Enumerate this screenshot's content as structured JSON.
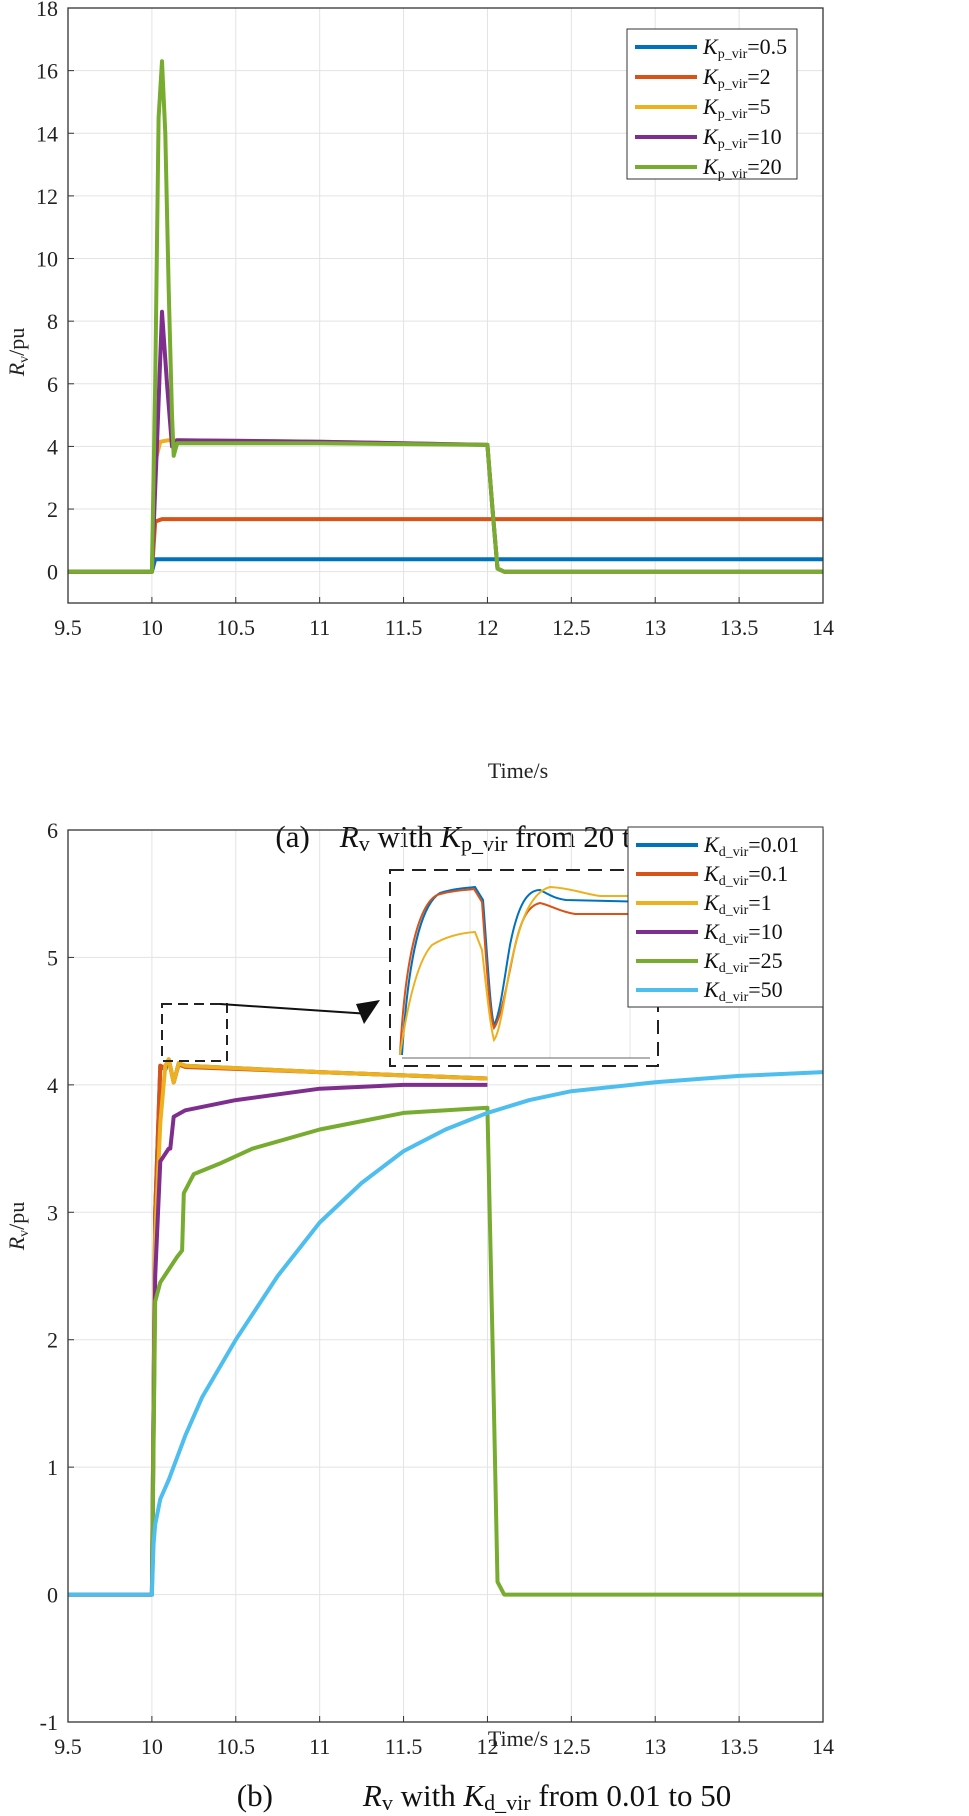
{
  "chart_data": [
    {
      "panel": "a",
      "type": "line",
      "caption": {
        "label": "(a)",
        "pre": "R",
        "pre_sub": "v",
        "mid": " with ",
        "k": "K",
        "k_sub": "p_vir",
        "post": " from 20 to 0.5"
      },
      "xlabel": "Time/s",
      "ylabel": {
        "main": "R",
        "sub": "v",
        "rest": "/pu"
      },
      "xlim": [
        9.5,
        14
      ],
      "ylim": [
        -1,
        18
      ],
      "xticks": [
        "9.5",
        "10",
        "10.5",
        "11",
        "11.5",
        "12",
        "12.5",
        "13",
        "13.5",
        "14"
      ],
      "yticks": [
        "0",
        "2",
        "4",
        "6",
        "8",
        "10",
        "12",
        "14",
        "16",
        "18"
      ],
      "grid": true,
      "legend_position": "top-right",
      "series": [
        {
          "legend": {
            "k": "K",
            "sub": "p_vir",
            "val": "=0.5"
          },
          "color": "#0072BD",
          "points": [
            [
              9.5,
              0
            ],
            [
              10.0,
              0
            ],
            [
              10.02,
              0.4
            ],
            [
              10.05,
              0.4
            ],
            [
              14,
              0.4
            ]
          ]
        },
        {
          "legend": {
            "k": "K",
            "sub": "p_vir",
            "val": "=2"
          },
          "color": "#D95319",
          "points": [
            [
              9.5,
              0
            ],
            [
              10.0,
              0
            ],
            [
              10.02,
              1.6
            ],
            [
              10.06,
              1.68
            ],
            [
              14,
              1.68
            ]
          ]
        },
        {
          "legend": {
            "k": "K",
            "sub": "p_vir",
            "val": "=5"
          },
          "color": "#EDB120",
          "points": [
            [
              9.5,
              0
            ],
            [
              10.0,
              0
            ],
            [
              10.02,
              3.5
            ],
            [
              10.05,
              4.15
            ],
            [
              10.1,
              4.2
            ],
            [
              11,
              4.15
            ],
            [
              12.0,
              4.05
            ],
            [
              12.03,
              2.0
            ],
            [
              12.06,
              0.1
            ],
            [
              12.1,
              0
            ],
            [
              14,
              0
            ]
          ]
        },
        {
          "legend": {
            "k": "K",
            "sub": "p_vir",
            "val": "=10"
          },
          "color": "#7E2F8E",
          "points": [
            [
              9.5,
              0
            ],
            [
              10.0,
              0
            ],
            [
              10.03,
              4.0
            ],
            [
              10.06,
              8.3
            ],
            [
              10.09,
              6.0
            ],
            [
              10.12,
              4.0
            ],
            [
              10.15,
              4.2
            ],
            [
              11,
              4.15
            ],
            [
              12.0,
              4.05
            ],
            [
              12.03,
              2.0
            ],
            [
              12.06,
              0.1
            ],
            [
              12.1,
              0
            ],
            [
              14,
              0
            ]
          ]
        },
        {
          "legend": {
            "k": "K",
            "sub": "p_vir",
            "val": "=20"
          },
          "color": "#77AC30",
          "points": [
            [
              9.5,
              0
            ],
            [
              10.0,
              0
            ],
            [
              10.02,
              6.0
            ],
            [
              10.04,
              14.5
            ],
            [
              10.06,
              16.3
            ],
            [
              10.08,
              14.0
            ],
            [
              10.1,
              9.0
            ],
            [
              10.12,
              5.0
            ],
            [
              10.13,
              3.7
            ],
            [
              10.15,
              4.1
            ],
            [
              10.18,
              4.1
            ],
            [
              11,
              4.1
            ],
            [
              12.0,
              4.05
            ],
            [
              12.03,
              2.0
            ],
            [
              12.06,
              0.1
            ],
            [
              12.1,
              0
            ],
            [
              14,
              0
            ]
          ]
        }
      ]
    },
    {
      "panel": "b",
      "type": "line",
      "caption": {
        "label": "(b)",
        "pre": "R",
        "pre_sub": "v",
        "mid": " with ",
        "k": "K",
        "k_sub": "d_vir",
        "post": " from 0.01 to 50"
      },
      "xlabel": "Time/s",
      "ylabel": {
        "main": "R",
        "sub": "v",
        "rest": "/pu"
      },
      "xlim": [
        9.5,
        14
      ],
      "ylim": [
        -1,
        6
      ],
      "xticks": [
        "9.5",
        "10",
        "10.5",
        "11",
        "11.5",
        "12",
        "12.5",
        "13",
        "13.5",
        "14"
      ],
      "yticks": [
        "-1",
        "0",
        "1",
        "2",
        "3",
        "4",
        "5",
        "6"
      ],
      "grid": true,
      "legend_position": "top-right",
      "series": [
        {
          "legend": {
            "k": "K",
            "sub": "d_vir",
            "val": "=0.01"
          },
          "color": "#0072BD",
          "points": [
            [
              9.5,
              0
            ],
            [
              10.0,
              0
            ],
            [
              10.02,
              3.0
            ],
            [
              10.05,
              4.15
            ],
            [
              10.08,
              4.12
            ],
            [
              10.1,
              4.2
            ],
            [
              10.13,
              4.02
            ],
            [
              10.16,
              4.17
            ],
            [
              10.2,
              4.15
            ],
            [
              11,
              4.1
            ],
            [
              12.0,
              4.05
            ]
          ]
        },
        {
          "legend": {
            "k": "K",
            "sub": "d_vir",
            "val": "=0.1"
          },
          "color": "#D95319",
          "points": [
            [
              9.5,
              0
            ],
            [
              10.0,
              0
            ],
            [
              10.02,
              3.0
            ],
            [
              10.05,
              4.15
            ],
            [
              10.08,
              4.13
            ],
            [
              10.1,
              4.2
            ],
            [
              10.13,
              4.02
            ],
            [
              10.16,
              4.16
            ],
            [
              10.2,
              4.14
            ],
            [
              11,
              4.1
            ],
            [
              12.0,
              4.05
            ]
          ]
        },
        {
          "legend": {
            "k": "K",
            "sub": "d_vir",
            "val": "=1"
          },
          "color": "#EDB120",
          "points": [
            [
              9.5,
              0
            ],
            [
              10.0,
              0
            ],
            [
              10.02,
              2.8
            ],
            [
              10.05,
              3.7
            ],
            [
              10.08,
              4.15
            ],
            [
              10.1,
              4.2
            ],
            [
              10.13,
              4.02
            ],
            [
              10.16,
              4.17
            ],
            [
              10.2,
              4.15
            ],
            [
              11,
              4.1
            ],
            [
              12.0,
              4.05
            ]
          ]
        },
        {
          "legend": {
            "k": "K",
            "sub": "d_vir",
            "val": "=10"
          },
          "color": "#7E2F8E",
          "points": [
            [
              9.5,
              0
            ],
            [
              10.0,
              0
            ],
            [
              10.02,
              2.5
            ],
            [
              10.05,
              3.4
            ],
            [
              10.1,
              3.5
            ],
            [
              10.11,
              3.5
            ],
            [
              10.13,
              3.75
            ],
            [
              10.2,
              3.8
            ],
            [
              10.5,
              3.88
            ],
            [
              11,
              3.97
            ],
            [
              11.5,
              4.0
            ],
            [
              12.0,
              4.0
            ]
          ]
        },
        {
          "legend": {
            "k": "K",
            "sub": "d_vir",
            "val": "=25"
          },
          "color": "#77AC30",
          "points": [
            [
              9.5,
              0
            ],
            [
              10.0,
              0
            ],
            [
              10.02,
              2.3
            ],
            [
              10.05,
              2.45
            ],
            [
              10.1,
              2.55
            ],
            [
              10.15,
              2.65
            ],
            [
              10.18,
              2.7
            ],
            [
              10.19,
              3.15
            ],
            [
              10.25,
              3.3
            ],
            [
              10.4,
              3.38
            ],
            [
              10.6,
              3.5
            ],
            [
              11,
              3.65
            ],
            [
              11.5,
              3.78
            ],
            [
              12.0,
              3.82
            ],
            [
              12.03,
              2.0
            ],
            [
              12.06,
              0.1
            ],
            [
              12.1,
              0
            ],
            [
              14,
              0
            ]
          ]
        },
        {
          "legend": {
            "k": "K",
            "sub": "d_vir",
            "val": "=50"
          },
          "color": "#4DBEEE",
          "points": [
            [
              9.5,
              0
            ],
            [
              10.0,
              0
            ],
            [
              10.01,
              0.4
            ],
            [
              10.02,
              0.55
            ],
            [
              10.05,
              0.75
            ],
            [
              10.1,
              0.9
            ],
            [
              10.2,
              1.25
            ],
            [
              10.3,
              1.55
            ],
            [
              10.5,
              2.0
            ],
            [
              10.75,
              2.5
            ],
            [
              11,
              2.92
            ],
            [
              11.25,
              3.23
            ],
            [
              11.5,
              3.48
            ],
            [
              11.75,
              3.65
            ],
            [
              12,
              3.78
            ],
            [
              12.25,
              3.88
            ],
            [
              12.5,
              3.95
            ],
            [
              13,
              4.02
            ],
            [
              13.5,
              4.07
            ],
            [
              14,
              4.1
            ]
          ]
        }
      ]
    }
  ]
}
